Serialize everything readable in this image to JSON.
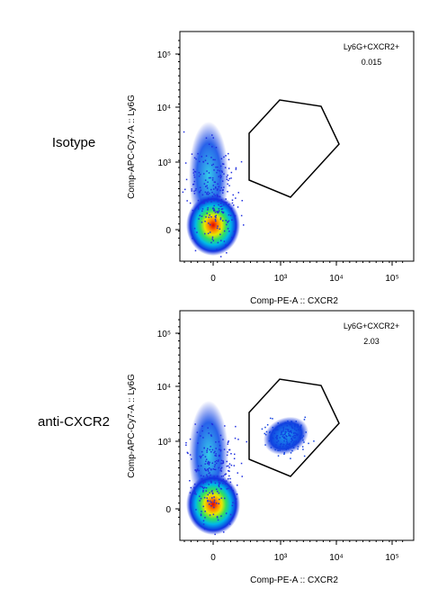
{
  "panels": [
    {
      "row_label": "Isotype",
      "gate_name": "Ly6G+CXCR2+",
      "gate_value": "0.015",
      "y_label": "Comp-APC-Cy7-A :: Ly6G",
      "x_label": "Comp-PE-A :: CXCR2",
      "y_ticks": [
        "10⁵",
        "10⁴",
        "10³",
        "0"
      ],
      "x_ticks": [
        "0",
        "10³",
        "10⁴",
        "10⁵"
      ]
    },
    {
      "row_label": "anti-CXCR2",
      "gate_name": "Ly6G+CXCR2+",
      "gate_value": "2.03",
      "y_label": "Comp-APC-Cy7-A :: Ly6G",
      "x_label": "Comp-PE-A :: CXCR2",
      "y_ticks": [
        "10⁵",
        "10⁴",
        "10³",
        "0"
      ],
      "x_ticks": [
        "0",
        "10³",
        "10⁴",
        "10⁵"
      ]
    }
  ]
}
